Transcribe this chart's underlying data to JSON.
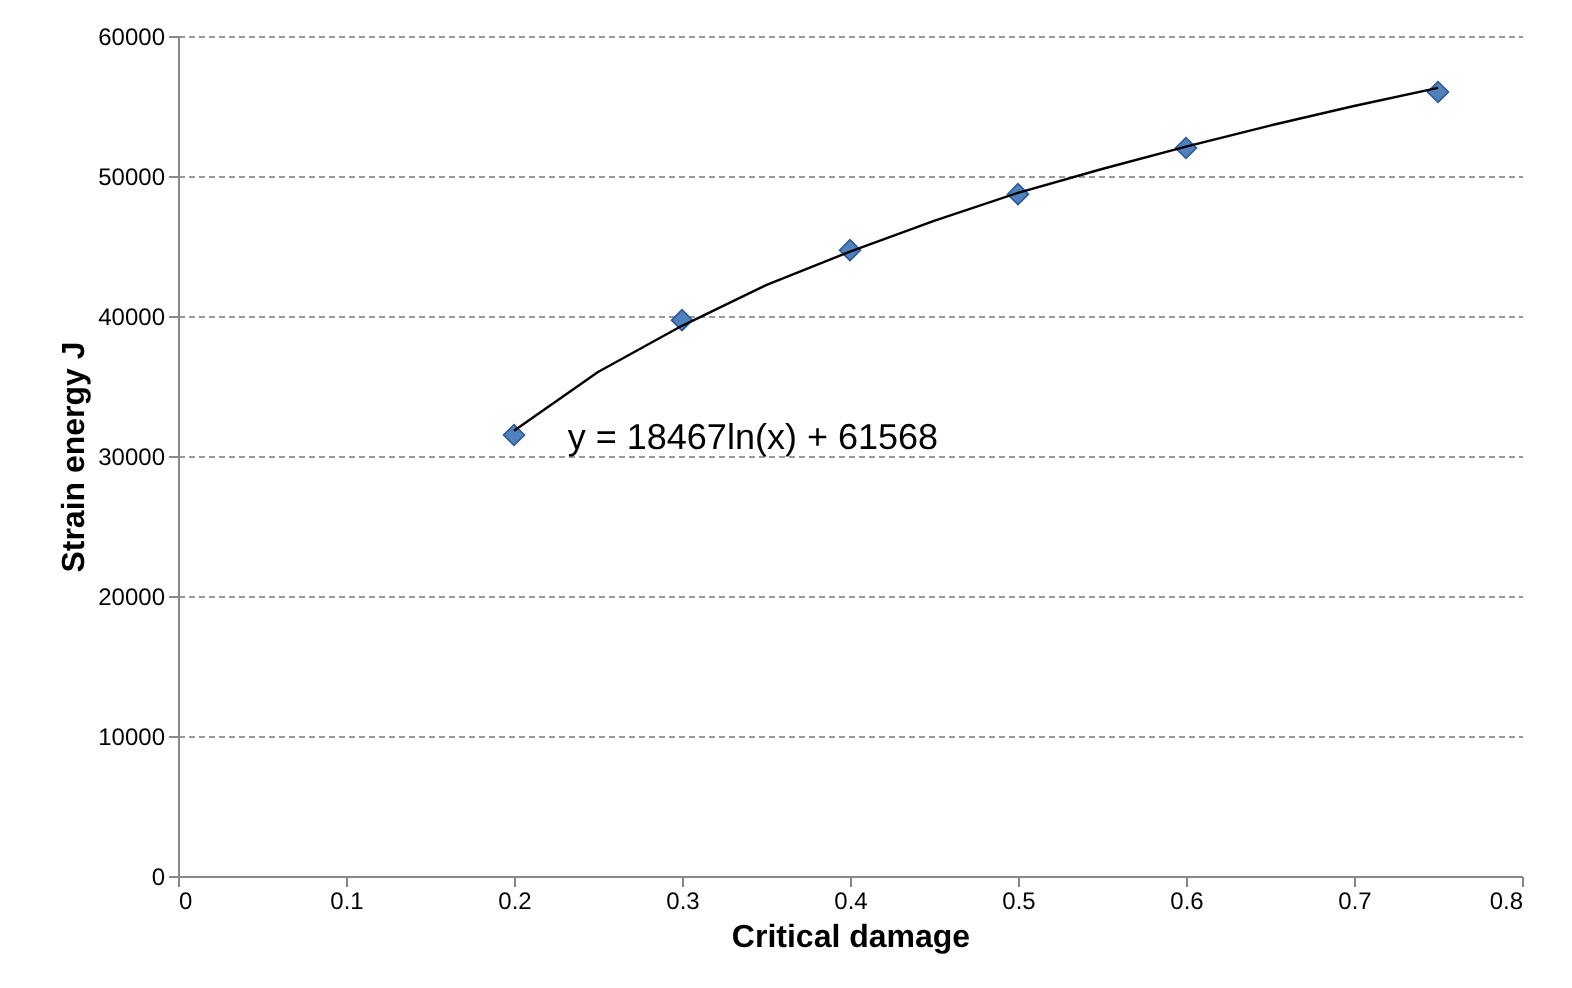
{
  "chart_data": {
    "type": "scatter",
    "xlabel": "Critical damage",
    "ylabel": "Strain energy J",
    "xlim": [
      0,
      0.8
    ],
    "xticks": [
      0,
      0.1,
      0.2,
      0.3,
      0.4,
      0.5,
      0.6,
      0.7,
      0.8
    ],
    "ylim": [
      0,
      60000
    ],
    "yticks": [
      0,
      10000,
      20000,
      30000,
      40000,
      50000,
      60000
    ],
    "grid": "y",
    "series": [
      {
        "type": "scatter",
        "color": "#4f81bd",
        "marker": "diamond",
        "x": [
          0.2,
          0.3,
          0.4,
          0.5,
          0.6,
          0.75
        ],
        "values": [
          31500,
          39700,
          44700,
          48700,
          52000,
          56000
        ]
      },
      {
        "type": "line",
        "color": "#000000",
        "marker": "none",
        "line_style": "solid",
        "x": [
          0.2,
          0.25,
          0.3,
          0.35,
          0.4,
          0.45,
          0.5,
          0.55,
          0.6,
          0.65,
          0.7,
          0.75
        ],
        "values": [
          31800,
          36000,
          39300,
          42200,
          44600,
          46800,
          48800,
          50500,
          52100,
          53600,
          55000,
          56300
        ]
      }
    ],
    "annotations": [
      "y = 18467ln(x) + 61568"
    ]
  }
}
